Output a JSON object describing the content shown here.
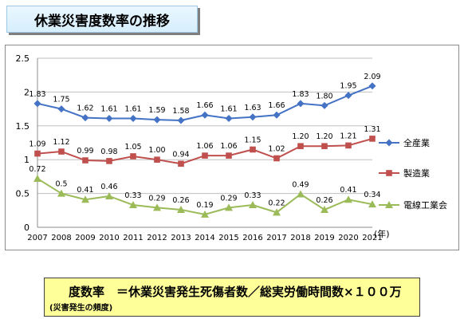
{
  "header": {
    "title": "休業災害度数率の推移"
  },
  "formula": {
    "main": "度数率　＝休業災害発生死傷者数／総実労働時間数×１００万",
    "sub": "(災害発生の頻度)"
  },
  "chart_data": {
    "type": "line",
    "categories": [
      "2007",
      "2008",
      "2009",
      "2010",
      "2011",
      "2012",
      "2013",
      "2014",
      "2015",
      "2016",
      "2017",
      "2018",
      "2019",
      "2020",
      "2021"
    ],
    "x_unit": "(年)",
    "ylim": [
      0,
      2.5
    ],
    "yticks": [
      "0",
      "0.5",
      "1",
      "1.5",
      "2",
      "2.5"
    ],
    "grid": true,
    "legend_position": "right",
    "series": [
      {
        "name": "全産業",
        "color": "#4472c4",
        "marker": "diamond",
        "values": [
          1.83,
          1.75,
          1.62,
          1.61,
          1.61,
          1.59,
          1.58,
          1.66,
          1.61,
          1.63,
          1.66,
          1.83,
          1.8,
          1.95,
          2.09
        ],
        "labels": [
          "1.83",
          "1.75",
          "1.62",
          "1.61",
          "1.61",
          "1.59",
          "1.58",
          "1.66",
          "1.61",
          "1.63",
          "1.66",
          "1.83",
          "1.80",
          "1.95",
          "2.09"
        ]
      },
      {
        "name": "製造業",
        "color": "#c0504d",
        "marker": "square",
        "values": [
          1.09,
          1.12,
          0.99,
          0.98,
          1.05,
          1.0,
          0.94,
          1.06,
          1.06,
          1.15,
          1.02,
          1.2,
          1.2,
          1.21,
          1.31
        ],
        "labels": [
          "1.09",
          "1.12",
          "0.99",
          "0.98",
          "1.05",
          "1.00",
          "0.94",
          "1.06",
          "1.06",
          "1.15",
          "1.02",
          "1.20",
          "1.20",
          "1.21",
          "1.31"
        ]
      },
      {
        "name": "電線工業会",
        "color": "#9bbb59",
        "marker": "triangle",
        "values": [
          0.72,
          0.5,
          0.41,
          0.46,
          0.33,
          0.29,
          0.26,
          0.19,
          0.29,
          0.33,
          0.22,
          0.49,
          0.26,
          0.41,
          0.34
        ],
        "labels": [
          "0.72",
          "0.5",
          "0.41",
          "0.46",
          "0.33",
          "0.29",
          "0.26",
          "0.19",
          "0.29",
          "0.33",
          "0.22",
          "0.49",
          "0.26",
          "0.41",
          "0.34"
        ]
      }
    ]
  }
}
